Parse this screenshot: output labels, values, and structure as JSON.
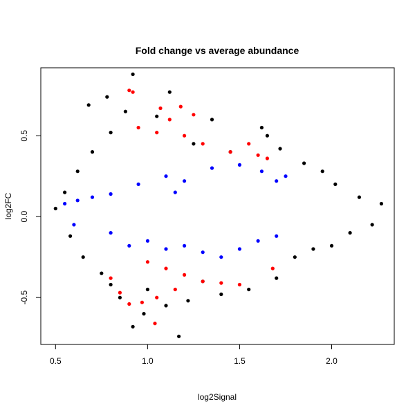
{
  "chart_data": {
    "type": "scatter",
    "title": "Fold change vs average abundance",
    "xlabel": "log2Signal",
    "ylabel": "log2FC",
    "xlim": [
      0.42,
      2.34
    ],
    "ylim": [
      -0.79,
      0.92
    ],
    "x_ticks": [
      0.5,
      1.0,
      1.5,
      2.0
    ],
    "x_tick_labels": [
      "0.5",
      "1.0",
      "1.5",
      "2.0"
    ],
    "y_ticks": [
      -0.5,
      0.0,
      0.5
    ],
    "y_tick_labels": [
      "-0.5",
      "0.0",
      "0.5"
    ],
    "grid": false,
    "legend": "none",
    "series": [
      {
        "color": "#000000",
        "points": [
          [
            0.92,
            0.88
          ],
          [
            0.68,
            0.69
          ],
          [
            0.78,
            0.74
          ],
          [
            1.12,
            0.77
          ],
          [
            0.88,
            0.65
          ],
          [
            1.05,
            0.62
          ],
          [
            1.35,
            0.6
          ],
          [
            1.62,
            0.55
          ],
          [
            1.65,
            0.5
          ],
          [
            1.72,
            0.42
          ],
          [
            1.85,
            0.33
          ],
          [
            1.95,
            0.28
          ],
          [
            2.02,
            0.2
          ],
          [
            2.15,
            0.12
          ],
          [
            2.27,
            0.08
          ],
          [
            2.22,
            -0.05
          ],
          [
            2.1,
            -0.1
          ],
          [
            2.0,
            -0.18
          ],
          [
            1.9,
            -0.2
          ],
          [
            1.8,
            -0.25
          ],
          [
            1.7,
            -0.38
          ],
          [
            1.55,
            -0.45
          ],
          [
            1.4,
            -0.48
          ],
          [
            1.22,
            -0.52
          ],
          [
            1.1,
            -0.55
          ],
          [
            0.98,
            -0.6
          ],
          [
            0.92,
            -0.68
          ],
          [
            1.17,
            -0.74
          ],
          [
            0.8,
            -0.42
          ],
          [
            0.75,
            -0.35
          ],
          [
            0.65,
            -0.25
          ],
          [
            0.58,
            -0.12
          ],
          [
            0.5,
            0.05
          ],
          [
            0.55,
            0.15
          ],
          [
            0.62,
            0.28
          ],
          [
            0.7,
            0.4
          ],
          [
            0.8,
            0.52
          ],
          [
            1.25,
            0.45
          ],
          [
            1.45,
            0.4
          ],
          [
            1.3,
            -0.4
          ],
          [
            1.0,
            -0.45
          ],
          [
            0.85,
            -0.5
          ]
        ]
      },
      {
        "color": "#0000ff",
        "points": [
          [
            0.55,
            0.08
          ],
          [
            0.62,
            0.1
          ],
          [
            0.7,
            0.12
          ],
          [
            0.8,
            0.14
          ],
          [
            0.95,
            0.2
          ],
          [
            1.1,
            0.25
          ],
          [
            1.2,
            0.22
          ],
          [
            1.35,
            0.3
          ],
          [
            1.5,
            0.32
          ],
          [
            1.62,
            0.28
          ],
          [
            1.7,
            0.22
          ],
          [
            1.75,
            0.25
          ],
          [
            1.0,
            -0.15
          ],
          [
            1.1,
            -0.2
          ],
          [
            1.2,
            -0.18
          ],
          [
            1.3,
            -0.22
          ],
          [
            1.4,
            -0.25
          ],
          [
            1.5,
            -0.2
          ],
          [
            1.6,
            -0.15
          ],
          [
            1.7,
            -0.12
          ],
          [
            0.9,
            -0.18
          ],
          [
            0.8,
            -0.1
          ],
          [
            0.6,
            -0.05
          ],
          [
            1.15,
            0.15
          ]
        ]
      },
      {
        "color": "#ff0000",
        "points": [
          [
            0.9,
            0.78
          ],
          [
            0.92,
            0.77
          ],
          [
            1.07,
            0.67
          ],
          [
            1.18,
            0.68
          ],
          [
            1.12,
            0.6
          ],
          [
            1.25,
            0.63
          ],
          [
            0.95,
            0.55
          ],
          [
            1.05,
            0.52
          ],
          [
            1.2,
            0.5
          ],
          [
            1.3,
            0.45
          ],
          [
            1.55,
            0.45
          ],
          [
            1.6,
            0.38
          ],
          [
            1.65,
            0.36
          ],
          [
            1.45,
            0.4
          ],
          [
            1.0,
            -0.28
          ],
          [
            1.1,
            -0.32
          ],
          [
            1.2,
            -0.36
          ],
          [
            1.3,
            -0.4
          ],
          [
            1.4,
            -0.41
          ],
          [
            1.5,
            -0.42
          ],
          [
            1.68,
            -0.32
          ],
          [
            0.85,
            -0.47
          ],
          [
            0.9,
            -0.54
          ],
          [
            0.97,
            -0.53
          ],
          [
            1.05,
            -0.5
          ],
          [
            1.04,
            -0.66
          ],
          [
            0.8,
            -0.38
          ],
          [
            1.15,
            -0.45
          ]
        ]
      }
    ]
  }
}
